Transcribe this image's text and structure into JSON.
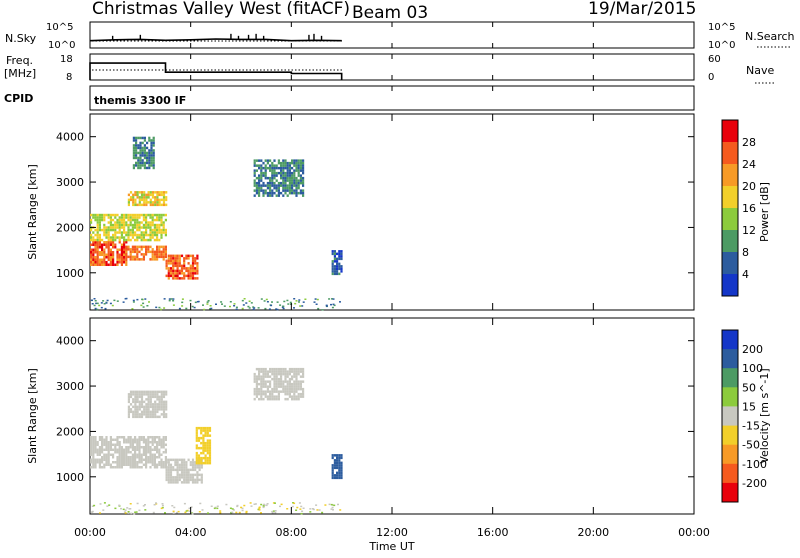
{
  "header": {
    "title": "Christmas Valley West (fitACF)",
    "beam": "Beam 03",
    "date": "19/Mar/2015"
  },
  "panels": {
    "nsky": {
      "label": "N.Sky",
      "ticks_left": [
        "10^5",
        "10^0"
      ],
      "ticks_right": [
        "10^5",
        "10^0"
      ],
      "right_label": "N.Search"
    },
    "freq": {
      "label_line1": "Freq.",
      "label_line2": "[MHz]",
      "ticks_left": [
        "18",
        "8"
      ],
      "ticks_right": [
        "60",
        "0"
      ],
      "right_label": "Nave"
    },
    "cpid": {
      "label": "CPID",
      "program": "themis 3300 IF"
    }
  },
  "axes": {
    "ylabel": "Slant Range [km]",
    "y_ticks": [
      "4000",
      "3000",
      "2000",
      "1000"
    ],
    "x_ticks": [
      "00:00",
      "04:00",
      "08:00",
      "12:00",
      "16:00",
      "20:00",
      "00:00"
    ],
    "xlabel": "Time UT"
  },
  "colorbars": {
    "power": {
      "label": "Power [dB]",
      "ticks": [
        "28",
        "24",
        "20",
        "16",
        "12",
        "8",
        "4"
      ],
      "colors": [
        "#e8000b",
        "#f55a1e",
        "#f79a26",
        "#f2cf2a",
        "#8ccb3c",
        "#4d9b64",
        "#2c5c9e",
        "#1436c8"
      ]
    },
    "velocity": {
      "label": "Velocity [m s^-1]",
      "ticks": [
        "200",
        "100",
        "50",
        "15",
        "-15",
        "-50",
        "-100",
        "-200"
      ],
      "colors": [
        "#1436c8",
        "#2c5c9e",
        "#4d9b64",
        "#8ccb3c",
        "#c8c8c0",
        "#f2cf2a",
        "#f79a26",
        "#f55a1e",
        "#e8000b"
      ]
    }
  },
  "chart_data": [
    {
      "type": "line",
      "title": "N.Sky / N.Search",
      "x": [
        "00:00",
        "01:00",
        "02:00",
        "03:00",
        "04:00",
        "05:00",
        "06:00",
        "07:00",
        "08:00",
        "09:00",
        "10:00"
      ],
      "series": [
        {
          "name": "N.Sky",
          "values": [
            1.2,
            1.4,
            1.5,
            1.3,
            1.4,
            1.6,
            1.5,
            1.5,
            1.2,
            1.3,
            1.2
          ]
        }
      ],
      "ylim": [
        0,
        5
      ]
    },
    {
      "type": "line",
      "title": "Freq. [MHz] / Nave",
      "x_breaks": [
        "00:00",
        "03:00",
        "08:00",
        "10:00"
      ],
      "series": [
        {
          "name": "Freq.",
          "values": [
            14.5,
            11,
            10.5
          ]
        },
        {
          "name": "Nave",
          "values": [
            20,
            20,
            20
          ]
        }
      ],
      "ylim": [
        8,
        18
      ]
    },
    {
      "type": "heatmap",
      "title": "Power [dB]",
      "xlabel": "Time UT",
      "ylabel": "Slant Range [km]",
      "x_range_hours": [
        0,
        24
      ],
      "ylim": [
        180,
        4500
      ],
      "regions": [
        {
          "t": [
            0.0,
            1.4
          ],
          "range_km": [
            1200,
            1700
          ],
          "value_db": 26
        },
        {
          "t": [
            1.4,
            3.0
          ],
          "range_km": [
            1300,
            1600
          ],
          "value_db": 24
        },
        {
          "t": [
            3.0,
            4.3
          ],
          "range_km": [
            900,
            1400
          ],
          "value_db": 26
        },
        {
          "t": [
            0.0,
            3.0
          ],
          "range_km": [
            1700,
            2300
          ],
          "value_db": 16
        },
        {
          "t": [
            1.5,
            3.0
          ],
          "range_km": [
            2500,
            2800
          ],
          "value_db": 18
        },
        {
          "t": [
            1.7,
            2.5
          ],
          "range_km": [
            3300,
            4000
          ],
          "value_db": 8
        },
        {
          "t": [
            6.5,
            8.5
          ],
          "range_km": [
            2700,
            3500
          ],
          "value_db": 8
        },
        {
          "t": [
            9.6,
            10.0
          ],
          "range_km": [
            1000,
            1500
          ],
          "value_db": 6
        }
      ]
    },
    {
      "type": "heatmap",
      "title": "Velocity [m s^-1]",
      "xlabel": "Time UT",
      "ylabel": "Slant Range [km]",
      "x_range_hours": [
        0,
        24
      ],
      "ylim": [
        180,
        4500
      ],
      "regions": [
        {
          "t": [
            0.0,
            3.0
          ],
          "range_km": [
            1200,
            1900
          ],
          "value_ms": 0
        },
        {
          "t": [
            3.0,
            4.4
          ],
          "range_km": [
            900,
            1400
          ],
          "value_ms": 0
        },
        {
          "t": [
            1.5,
            3.0
          ],
          "range_km": [
            2300,
            2900
          ],
          "value_ms": 0
        },
        {
          "t": [
            4.2,
            4.8
          ],
          "range_km": [
            1300,
            2100
          ],
          "value_ms": -40
        },
        {
          "t": [
            6.5,
            8.5
          ],
          "range_km": [
            2700,
            3400
          ],
          "value_ms": 0
        },
        {
          "t": [
            9.6,
            10.0
          ],
          "range_km": [
            1000,
            1500
          ],
          "value_ms": 180
        }
      ]
    }
  ]
}
